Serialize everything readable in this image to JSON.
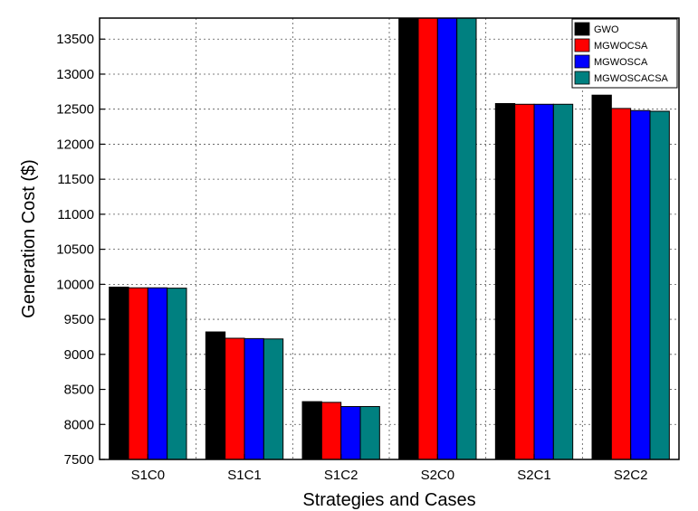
{
  "chart_data": {
    "type": "bar",
    "xlabel": "Strategies and Cases",
    "ylabel": "Generation Cost ($)",
    "categories": [
      "S1C0",
      "S1C1",
      "S1C2",
      "S2C0",
      "S2C1",
      "S2C2"
    ],
    "series": [
      {
        "name": "GWO",
        "color": "#000000",
        "values": [
          9960,
          9320,
          8325,
          13850,
          12580,
          12700
        ]
      },
      {
        "name": "MGWOCSA",
        "color": "#ff0000",
        "values": [
          9950,
          9230,
          8315,
          13850,
          12570,
          12510
        ]
      },
      {
        "name": "MGWOSCA",
        "color": "#0000ff",
        "values": [
          9950,
          9225,
          8255,
          13850,
          12570,
          12480
        ]
      },
      {
        "name": "MGWOSCACSA",
        "color": "#008080",
        "values": [
          9945,
          9220,
          8255,
          13850,
          12570,
          12470
        ]
      }
    ],
    "ylim": [
      7500,
      13800
    ],
    "yticks": [
      7500,
      8000,
      8500,
      9000,
      9500,
      10000,
      10500,
      11000,
      11500,
      12000,
      12500,
      13000,
      13500
    ],
    "grid": true,
    "legend_position": "top-right"
  }
}
